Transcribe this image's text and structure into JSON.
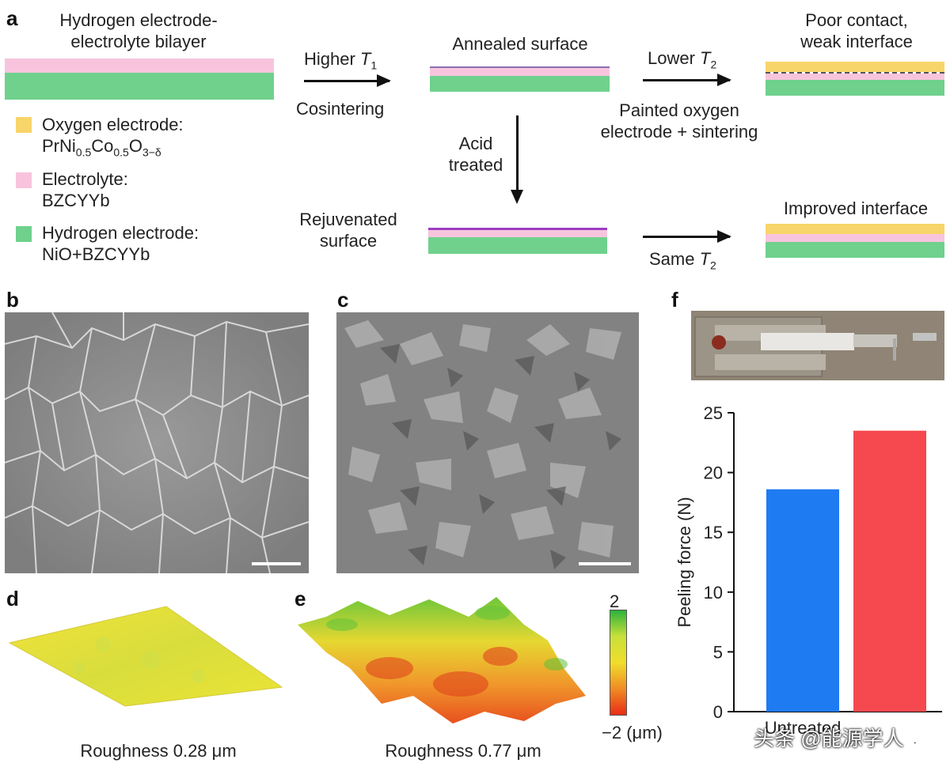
{
  "panel_a": {
    "label": "a",
    "bilayer_title_1": "Hydrogen electrode-",
    "bilayer_title_2": "electrolyte bilayer",
    "step1_top_1": "Higher ",
    "step1_top_var": "T",
    "step1_top_sub": "1",
    "step1_bottom": "Cosintering",
    "annealed": "Annealed surface",
    "step2_top_1": "Lower ",
    "step2_top_var": "T",
    "step2_top_sub": "2",
    "step2_bottom_1": "Painted oxygen",
    "step2_bottom_2": "electrode + sintering",
    "poor_1": "Poor contact,",
    "poor_2": "weak interface",
    "acid_1": "Acid",
    "acid_2": "treated",
    "rejuv_1": "Rejuvenated",
    "rejuv_2": "surface",
    "step3_bottom_1": "Same ",
    "step3_bottom_var": "T",
    "step3_bottom_sub": "2",
    "improved": "Improved interface",
    "legend": {
      "oxygen_1": "Oxygen electrode:",
      "oxygen_formula": "PrNi0.5Co0.5O3−δ",
      "oxygen_f_a": "PrNi",
      "oxygen_f_s1": "0.5",
      "oxygen_f_b": "Co",
      "oxygen_f_s2": "0.5",
      "oxygen_f_c": "O",
      "oxygen_f_s3": "3−δ",
      "electrolyte_1": "Electrolyte:",
      "electrolyte_2": "BZCYYb",
      "hydrogen_1": "Hydrogen electrode:",
      "hydrogen_2": "NiO+BZCYYb"
    },
    "colors": {
      "oxygen": "#f8d56a",
      "electrolyte": "#f8c4dd",
      "hydrogen": "#6fd18c",
      "rejuvenated": "#9b3fc4"
    }
  },
  "panel_b": {
    "label": "b"
  },
  "panel_c": {
    "label": "c"
  },
  "panel_d": {
    "label": "d",
    "caption": "Roughness 0.28 μm"
  },
  "panel_e": {
    "label": "e",
    "caption": "Roughness 0.77 μm"
  },
  "colorbar": {
    "max_label": "2",
    "min_label": "−2 (μm)"
  },
  "panel_f": {
    "label": "f"
  },
  "chart_data": {
    "type": "bar",
    "categories": [
      "Untreated",
      "Acid treated"
    ],
    "category_display": [
      "Untreated",
      "treated"
    ],
    "values": [
      18.6,
      23.5
    ],
    "colors": [
      "#1f7bf2",
      "#f5494f"
    ],
    "ylabel": "Peeling force (N)",
    "ylim": [
      0,
      25
    ],
    "yticks": [
      0,
      5,
      10,
      15,
      20,
      25
    ]
  },
  "watermark": "头条 @能源学人"
}
